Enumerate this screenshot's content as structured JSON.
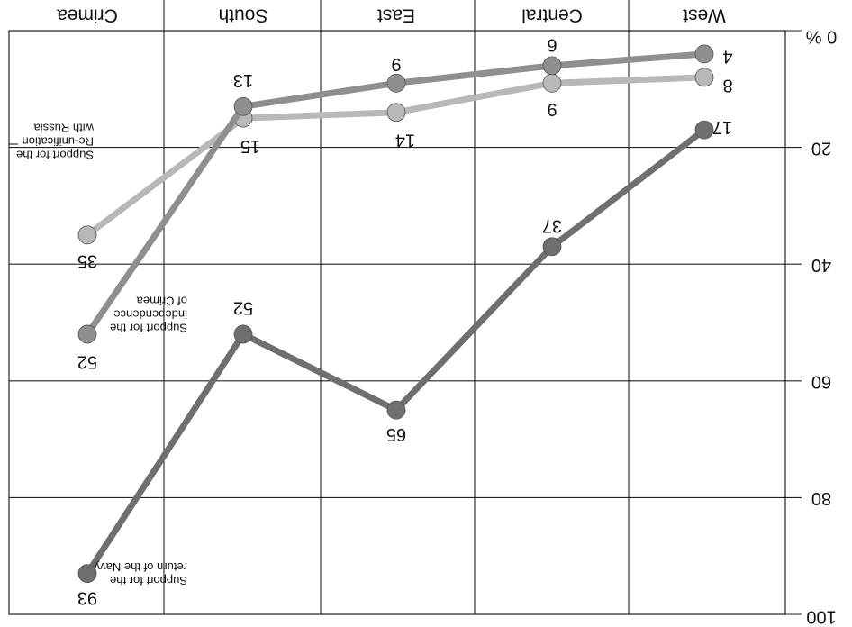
{
  "chart_data": {
    "type": "line",
    "orientation": "rotated-180",
    "categories": [
      "West",
      "Central",
      "East",
      "South",
      "Crimea"
    ],
    "y_unit": "%",
    "ylim": [
      0,
      100
    ],
    "y_ticks": [
      0,
      20,
      40,
      60,
      80,
      100
    ],
    "grid": true,
    "series": [
      {
        "name": "Support for the return of the Navy",
        "values": [
          17,
          37,
          65,
          52,
          93
        ],
        "labels": [
          "17",
          "37",
          "65",
          "52",
          "93"
        ],
        "color": "#6f6f6f"
      },
      {
        "name": "Support for the independence of Crimea",
        "values": [
          4,
          6,
          9,
          13,
          52
        ],
        "labels": [
          "4",
          "6",
          "9",
          "13",
          "52"
        ],
        "color": "#8f8f8f"
      },
      {
        "name": "Support for the Re-unification with Russia",
        "values": [
          8,
          9,
          14,
          15,
          35
        ],
        "labels": [
          "8",
          "9",
          "14",
          "15",
          "35"
        ],
        "color": "#b8b8b8"
      }
    ],
    "series_label_lines": [
      [
        "Support for the",
        "return of the Navy"
      ],
      [
        "Support for the",
        "independence",
        "of Crimea"
      ],
      [
        "Support for the",
        "Re-unification",
        "with Russia"
      ]
    ]
  }
}
